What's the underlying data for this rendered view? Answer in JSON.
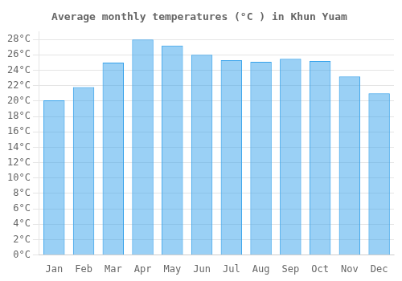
{
  "chart_data": {
    "type": "bar",
    "title": "Average monthly temperatures (°C ) in Khun Yuam",
    "categories": [
      "Jan",
      "Feb",
      "Mar",
      "Apr",
      "May",
      "Jun",
      "Jul",
      "Aug",
      "Sep",
      "Oct",
      "Nov",
      "Dec"
    ],
    "values": [
      20.1,
      21.8,
      25.0,
      28.0,
      27.2,
      26.0,
      25.3,
      25.1,
      25.5,
      25.2,
      23.2,
      21.0
    ],
    "ylim": [
      0,
      29
    ],
    "yticks": [
      {
        "value": 0,
        "label": "0°C"
      },
      {
        "value": 2,
        "label": "2°C"
      },
      {
        "value": 4,
        "label": "4°C"
      },
      {
        "value": 6,
        "label": "6°C"
      },
      {
        "value": 8,
        "label": "8°C"
      },
      {
        "value": 10,
        "label": "10°C"
      },
      {
        "value": 12,
        "label": "12°C"
      },
      {
        "value": 14,
        "label": "14°C"
      },
      {
        "value": 16,
        "label": "16°C"
      },
      {
        "value": 18,
        "label": "18°C"
      },
      {
        "value": 20,
        "label": "20°C"
      },
      {
        "value": 22,
        "label": "22°C"
      },
      {
        "value": 24,
        "label": "24°C"
      },
      {
        "value": 26,
        "label": "26°C"
      },
      {
        "value": 28,
        "label": "28°C"
      }
    ],
    "grid": true
  }
}
